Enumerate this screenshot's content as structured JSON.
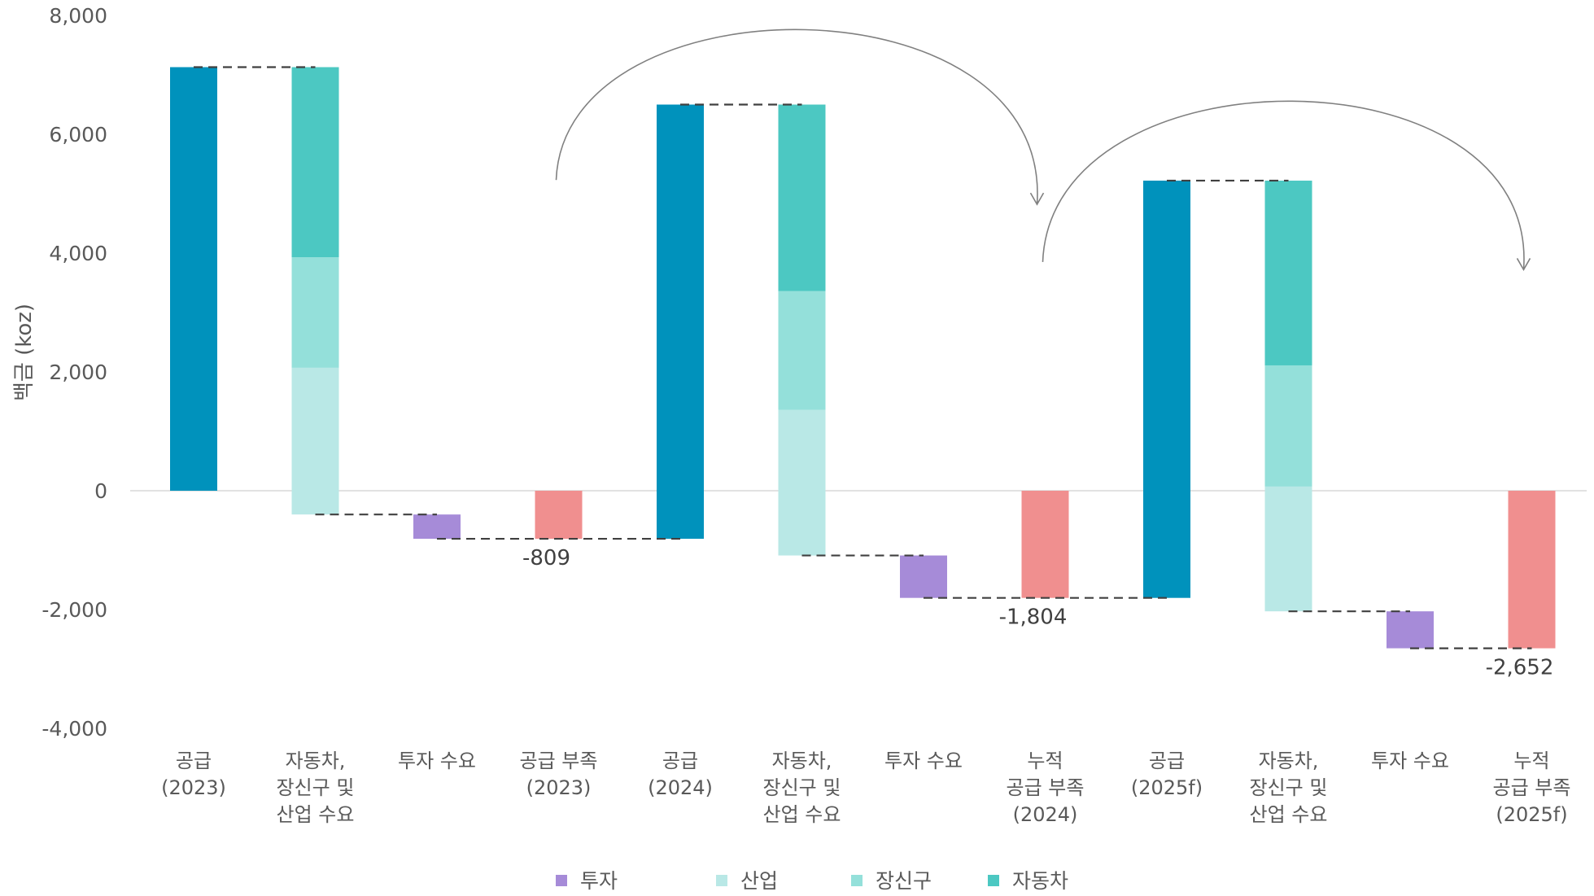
{
  "chart_data": {
    "type": "bar",
    "subtype": "waterfall",
    "ylabel": "백금 (koz)",
    "ylim": [
      -4000,
      8000
    ],
    "yticks": [
      -4000,
      -2000,
      0,
      2000,
      4000,
      6000,
      8000
    ],
    "ytick_labels": [
      "-4,000",
      "-2,000",
      "0",
      "2,000",
      "4,000",
      "6,000",
      "8,000"
    ],
    "grid": false,
    "legend_position": "bottom",
    "colors": {
      "supply": "#0092bc",
      "투자": "#a68bd8",
      "산업": "#b9e8e6",
      "장신구": "#94e0da",
      "자동차": "#4cc8c2",
      "deficit": "#f08f8f",
      "connector": "#404040",
      "arrow": "#808080"
    },
    "categories": [
      [
        "공급",
        "(2023)"
      ],
      [
        "자동차,",
        "장신구 및",
        "산업 수요"
      ],
      [
        "투자 수요"
      ],
      [
        "공급 부족",
        "(2023)"
      ],
      [
        "공급",
        "(2024)"
      ],
      [
        "자동차,",
        "장신구 및",
        "산업 수요"
      ],
      [
        "투자 수요"
      ],
      [
        "누적",
        "공급 부족",
        "(2024)"
      ],
      [
        "공급",
        "(2025f)"
      ],
      [
        "자동차,",
        "장신구 및",
        "산업 수요"
      ],
      [
        "투자 수요"
      ],
      [
        "누적",
        "공급 부족",
        "(2025f)"
      ]
    ],
    "legend": [
      {
        "name": "투자",
        "color": "#a68bd8"
      },
      {
        "name": "산업",
        "color": "#b9e8e6"
      },
      {
        "name": "장신구",
        "color": "#94e0da"
      },
      {
        "name": "자동차",
        "color": "#4cc8c2"
      }
    ],
    "bars": [
      {
        "index": 0,
        "kind": "supply",
        "from": 0,
        "to": 7130
      },
      {
        "index": 1,
        "kind": "demand",
        "segments": [
          {
            "series": "산업",
            "from": -400,
            "to": 2070
          },
          {
            "series": "장신구",
            "from": 2070,
            "to": 3930
          },
          {
            "series": "자동차",
            "from": 3930,
            "to": 7130
          }
        ]
      },
      {
        "index": 2,
        "kind": "investment",
        "series": "투자",
        "from": -809,
        "to": -400
      },
      {
        "index": 3,
        "kind": "deficit",
        "from": -809,
        "to": 0,
        "label": "-809"
      },
      {
        "index": 4,
        "kind": "supply",
        "from": -809,
        "to": 6500
      },
      {
        "index": 5,
        "kind": "demand",
        "segments": [
          {
            "series": "산업",
            "from": -1090,
            "to": 1360
          },
          {
            "series": "장신구",
            "from": 1360,
            "to": 3360
          },
          {
            "series": "자동차",
            "from": 3360,
            "to": 6500
          }
        ]
      },
      {
        "index": 6,
        "kind": "investment",
        "series": "투자",
        "from": -1804,
        "to": -1090
      },
      {
        "index": 7,
        "kind": "deficit",
        "from": -1804,
        "to": 0,
        "label": "-1,804"
      },
      {
        "index": 8,
        "kind": "supply",
        "from": -1804,
        "to": 5220
      },
      {
        "index": 9,
        "kind": "demand",
        "segments": [
          {
            "series": "산업",
            "from": -2030,
            "to": 70
          },
          {
            "series": "장신구",
            "from": 70,
            "to": 2110
          },
          {
            "series": "자동차",
            "from": 2110,
            "to": 5220
          }
        ]
      },
      {
        "index": 10,
        "kind": "investment",
        "series": "투자",
        "from": -2652,
        "to": -2030
      },
      {
        "index": 11,
        "kind": "deficit",
        "from": -2652,
        "to": 0,
        "label": "-2,652"
      }
    ],
    "connectors": [
      {
        "from_index": 0,
        "to_index": 1,
        "y": 7130
      },
      {
        "from_index": 1,
        "to_index": 2,
        "y": -400
      },
      {
        "from_index": 2,
        "to_index": 4,
        "y": -809
      },
      {
        "from_index": 4,
        "to_index": 5,
        "y": 6500
      },
      {
        "from_index": 5,
        "to_index": 6,
        "y": -1090
      },
      {
        "from_index": 6,
        "to_index": 8,
        "y": -1804
      },
      {
        "from_index": 8,
        "to_index": 9,
        "y": 5220
      },
      {
        "from_index": 9,
        "to_index": 10,
        "y": -2030
      },
      {
        "from_index": 10,
        "to_index": 11,
        "y": -2652
      }
    ],
    "arrows": [
      {
        "from_index": 3,
        "to_index": 7
      },
      {
        "from_index": 7,
        "to_index": 11
      }
    ]
  }
}
